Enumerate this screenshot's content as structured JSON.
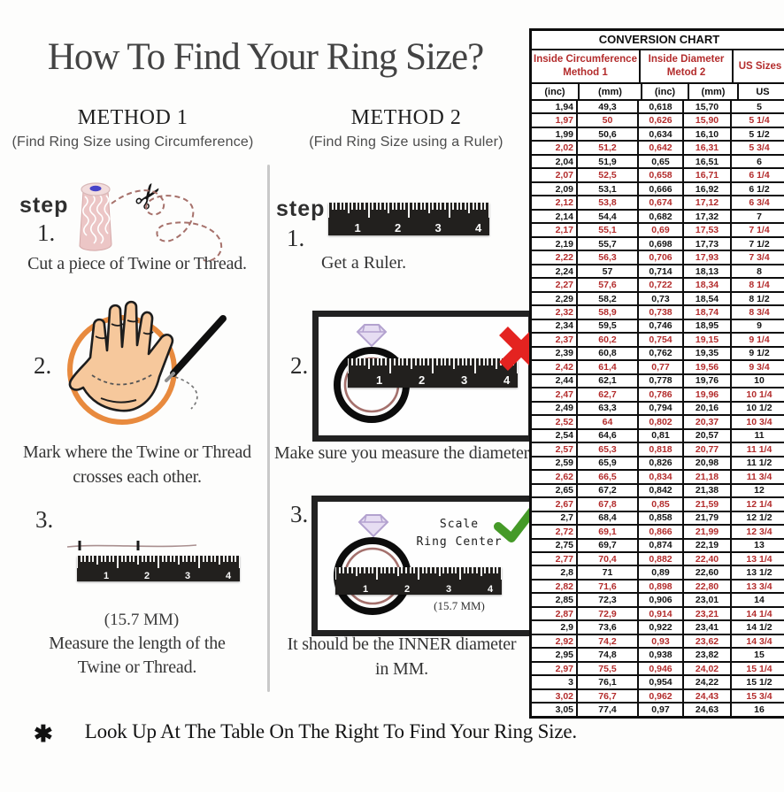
{
  "page": {
    "title": "How To Find Your Ring Size?"
  },
  "method1": {
    "heading": "METHOD 1",
    "subheading": "(Find Ring Size using Circumference)",
    "step_label": "step",
    "s1_num": "1.",
    "s1_caption": "Cut a piece of Twine or Thread.",
    "s2_num": "2.",
    "s2_caption_1": "Mark where the Twine or Thread",
    "s2_caption_2": "crosses each other.",
    "s3_num": "3.",
    "s3_length": "(15.7 MM)",
    "s3_caption_1": "Measure the length of the",
    "s3_caption_2": "Twine or Thread."
  },
  "method2": {
    "heading": "METHOD 2",
    "subheading": "(Find Ring Size using a Ruler)",
    "step_label": "step",
    "s1_num": "1.",
    "s1_caption": "Get a Ruler.",
    "s2_num": "2.",
    "s2_caption": "Make sure you measure the diameter.",
    "s3_num": "3.",
    "s3_scale_1": "Scale",
    "s3_scale_2": "Ring Center",
    "s3_length": "(15.7 MM)",
    "s3_caption_1": "It should be the INNER diameter",
    "s3_caption_2": "in MM."
  },
  "footer": {
    "asterisk": "✱",
    "text": "Look Up At The Table On The Right To Find Your Ring Size."
  },
  "icons": {
    "scissors": "✂"
  },
  "ruler": {
    "numbers": [
      "1",
      "2",
      "3",
      "4"
    ]
  },
  "colors": {
    "table_red": "#b32c2c",
    "table_black": "#151515",
    "circle_orange": "#e88a3e",
    "red_x": "#e42320",
    "green_check": "#459a28",
    "skin": "#f6c89c",
    "diamond_lavender": "#e6ddf2"
  },
  "conversion_chart": {
    "title": "CONVERSION CHART",
    "col_groups": [
      {
        "line1": "Inside Circumference",
        "line2": "Method 1"
      },
      {
        "line1": "Inside Diameter",
        "line2": "Metod 2"
      },
      {
        "line1": "US Sizes"
      }
    ],
    "unit_headers": [
      "(inc)",
      "(mm)",
      "(inc)",
      "(mm)",
      "US"
    ],
    "row_format": [
      "inside_circumference_inc",
      "inside_circumference_mm",
      "inside_diameter_inc",
      "inside_diameter_mm",
      "us_size",
      "is_red"
    ],
    "rows": [
      [
        "1,94",
        "49,3",
        "0,618",
        "15,70",
        "5",
        0
      ],
      [
        "1,97",
        "50",
        "0,626",
        "15,90",
        "5 1/4",
        1
      ],
      [
        "1,99",
        "50,6",
        "0,634",
        "16,10",
        "5 1/2",
        0
      ],
      [
        "2,02",
        "51,2",
        "0,642",
        "16,31",
        "5 3/4",
        1
      ],
      [
        "2,04",
        "51,9",
        "0,65",
        "16,51",
        "6",
        0
      ],
      [
        "2,07",
        "52,5",
        "0,658",
        "16,71",
        "6 1/4",
        1
      ],
      [
        "2,09",
        "53,1",
        "0,666",
        "16,92",
        "6 1/2",
        0
      ],
      [
        "2,12",
        "53,8",
        "0,674",
        "17,12",
        "6 3/4",
        1
      ],
      [
        "2,14",
        "54,4",
        "0,682",
        "17,32",
        "7",
        0
      ],
      [
        "2,17",
        "55,1",
        "0,69",
        "17,53",
        "7 1/4",
        1
      ],
      [
        "2,19",
        "55,7",
        "0,698",
        "17,73",
        "7 1/2",
        0
      ],
      [
        "2,22",
        "56,3",
        "0,706",
        "17,93",
        "7 3/4",
        1
      ],
      [
        "2,24",
        "57",
        "0,714",
        "18,13",
        "8",
        0
      ],
      [
        "2,27",
        "57,6",
        "0,722",
        "18,34",
        "8 1/4",
        1
      ],
      [
        "2,29",
        "58,2",
        "0,73",
        "18,54",
        "8 1/2",
        0
      ],
      [
        "2,32",
        "58,9",
        "0,738",
        "18,74",
        "8 3/4",
        1
      ],
      [
        "2,34",
        "59,5",
        "0,746",
        "18,95",
        "9",
        0
      ],
      [
        "2,37",
        "60,2",
        "0,754",
        "19,15",
        "9 1/4",
        1
      ],
      [
        "2,39",
        "60,8",
        "0,762",
        "19,35",
        "9 1/2",
        0
      ],
      [
        "2,42",
        "61,4",
        "0,77",
        "19,56",
        "9 3/4",
        1
      ],
      [
        "2,44",
        "62,1",
        "0,778",
        "19,76",
        "10",
        0
      ],
      [
        "2,47",
        "62,7",
        "0,786",
        "19,96",
        "10 1/4",
        1
      ],
      [
        "2,49",
        "63,3",
        "0,794",
        "20,16",
        "10 1/2",
        0
      ],
      [
        "2,52",
        "64",
        "0,802",
        "20,37",
        "10 3/4",
        1
      ],
      [
        "2,54",
        "64,6",
        "0,81",
        "20,57",
        "11",
        0
      ],
      [
        "2,57",
        "65,3",
        "0,818",
        "20,77",
        "11 1/4",
        1
      ],
      [
        "2,59",
        "65,9",
        "0,826",
        "20,98",
        "11 1/2",
        0
      ],
      [
        "2,62",
        "66,5",
        "0,834",
        "21,18",
        "11 3/4",
        1
      ],
      [
        "2,65",
        "67,2",
        "0,842",
        "21,38",
        "12",
        0
      ],
      [
        "2,67",
        "67,8",
        "0,85",
        "21,59",
        "12 1/4",
        1
      ],
      [
        "2,7",
        "68,4",
        "0,858",
        "21,79",
        "12 1/2",
        0
      ],
      [
        "2,72",
        "69,1",
        "0,866",
        "21,99",
        "12 3/4",
        1
      ],
      [
        "2,75",
        "69,7",
        "0,874",
        "22,19",
        "13",
        0
      ],
      [
        "2,77",
        "70,4",
        "0,882",
        "22,40",
        "13 1/4",
        1
      ],
      [
        "2,8",
        "71",
        "0,89",
        "22,60",
        "13 1/2",
        0
      ],
      [
        "2,82",
        "71,6",
        "0,898",
        "22,80",
        "13 3/4",
        1
      ],
      [
        "2,85",
        "72,3",
        "0,906",
        "23,01",
        "14",
        0
      ],
      [
        "2,87",
        "72,9",
        "0,914",
        "23,21",
        "14 1/4",
        1
      ],
      [
        "2,9",
        "73,6",
        "0,922",
        "23,41",
        "14 1/2",
        0
      ],
      [
        "2,92",
        "74,2",
        "0,93",
        "23,62",
        "14 3/4",
        1
      ],
      [
        "2,95",
        "74,8",
        "0,938",
        "23,82",
        "15",
        0
      ],
      [
        "2,97",
        "75,5",
        "0,946",
        "24,02",
        "15 1/4",
        1
      ],
      [
        "3",
        "76,1",
        "0,954",
        "24,22",
        "15 1/2",
        0
      ],
      [
        "3,02",
        "76,7",
        "0,962",
        "24,43",
        "15 3/4",
        1
      ],
      [
        "3,05",
        "77,4",
        "0,97",
        "24,63",
        "16",
        0
      ]
    ]
  }
}
